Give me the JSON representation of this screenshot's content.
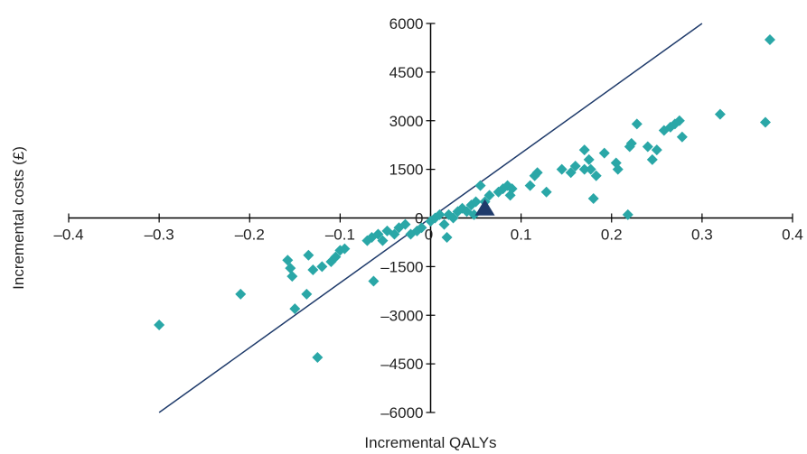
{
  "chart_data": {
    "type": "scatter",
    "title": "",
    "xlabel": "Incremental QALYs",
    "ylabel": "Incremental costs (£)",
    "xlim": [
      -0.4,
      0.4
    ],
    "ylim": [
      -6000,
      6000
    ],
    "xticks": [
      "–0.4",
      "–0.3",
      "–0.2",
      "–0.1",
      "0",
      "0.1",
      "0.2",
      "0.3",
      "0.4"
    ],
    "yticks": [
      "–6000",
      "–4500",
      "–3000",
      "–1500",
      "0",
      "1500",
      "3000",
      "4500",
      "6000"
    ],
    "grid": false,
    "colors": {
      "points": "#2aa7a7",
      "mean": "#1f3b6b",
      "threshold_line": "#1f3b6b",
      "axis": "#000000"
    },
    "threshold_line": {
      "x": [
        -0.3,
        0.3
      ],
      "y": [
        -6000,
        6000
      ]
    },
    "mean_point": {
      "x": 0.06,
      "y": 300
    },
    "series": [
      {
        "marker": "diamond",
        "points": [
          [
            -0.3,
            -3300
          ],
          [
            -0.21,
            -2350
          ],
          [
            -0.158,
            -1300
          ],
          [
            -0.155,
            -1550
          ],
          [
            -0.153,
            -1800
          ],
          [
            -0.15,
            -2800
          ],
          [
            -0.137,
            -2350
          ],
          [
            -0.135,
            -1150
          ],
          [
            -0.13,
            -1600
          ],
          [
            -0.125,
            -4300
          ],
          [
            -0.12,
            -1500
          ],
          [
            -0.11,
            -1350
          ],
          [
            -0.105,
            -1200
          ],
          [
            -0.1,
            -1000
          ],
          [
            -0.095,
            -950
          ],
          [
            -0.07,
            -700
          ],
          [
            -0.065,
            -600
          ],
          [
            -0.063,
            -1950
          ],
          [
            -0.058,
            -500
          ],
          [
            -0.053,
            -700
          ],
          [
            -0.048,
            -400
          ],
          [
            -0.04,
            -500
          ],
          [
            -0.035,
            -300
          ],
          [
            -0.028,
            -200
          ],
          [
            -0.022,
            -500
          ],
          [
            -0.015,
            -400
          ],
          [
            -0.01,
            -300
          ],
          [
            0.0,
            -100
          ],
          [
            0.005,
            0
          ],
          [
            0.01,
            100
          ],
          [
            0.015,
            -200
          ],
          [
            0.018,
            -600
          ],
          [
            0.02,
            100
          ],
          [
            0.025,
            0
          ],
          [
            0.03,
            200
          ],
          [
            0.035,
            300
          ],
          [
            0.04,
            200
          ],
          [
            0.045,
            400
          ],
          [
            0.048,
            100
          ],
          [
            0.05,
            500
          ],
          [
            0.055,
            1000
          ],
          [
            0.06,
            500
          ],
          [
            0.065,
            700
          ],
          [
            0.075,
            800
          ],
          [
            0.08,
            900
          ],
          [
            0.085,
            1000
          ],
          [
            0.088,
            700
          ],
          [
            0.09,
            900
          ],
          [
            0.11,
            1000
          ],
          [
            0.115,
            1300
          ],
          [
            0.118,
            1400
          ],
          [
            0.128,
            800
          ],
          [
            0.145,
            1500
          ],
          [
            0.155,
            1400
          ],
          [
            0.16,
            1600
          ],
          [
            0.17,
            1500
          ],
          [
            0.17,
            2100
          ],
          [
            0.175,
            1800
          ],
          [
            0.177,
            1500
          ],
          [
            0.18,
            600
          ],
          [
            0.183,
            1300
          ],
          [
            0.192,
            2000
          ],
          [
            0.205,
            1700
          ],
          [
            0.207,
            1500
          ],
          [
            0.218,
            100
          ],
          [
            0.22,
            2200
          ],
          [
            0.222,
            2300
          ],
          [
            0.228,
            2900
          ],
          [
            0.24,
            2200
          ],
          [
            0.245,
            1800
          ],
          [
            0.25,
            2100
          ],
          [
            0.258,
            2700
          ],
          [
            0.265,
            2800
          ],
          [
            0.27,
            2900
          ],
          [
            0.275,
            3000
          ],
          [
            0.278,
            2500
          ],
          [
            0.32,
            3200
          ],
          [
            0.37,
            2950
          ],
          [
            0.375,
            5500
          ]
        ]
      }
    ]
  }
}
